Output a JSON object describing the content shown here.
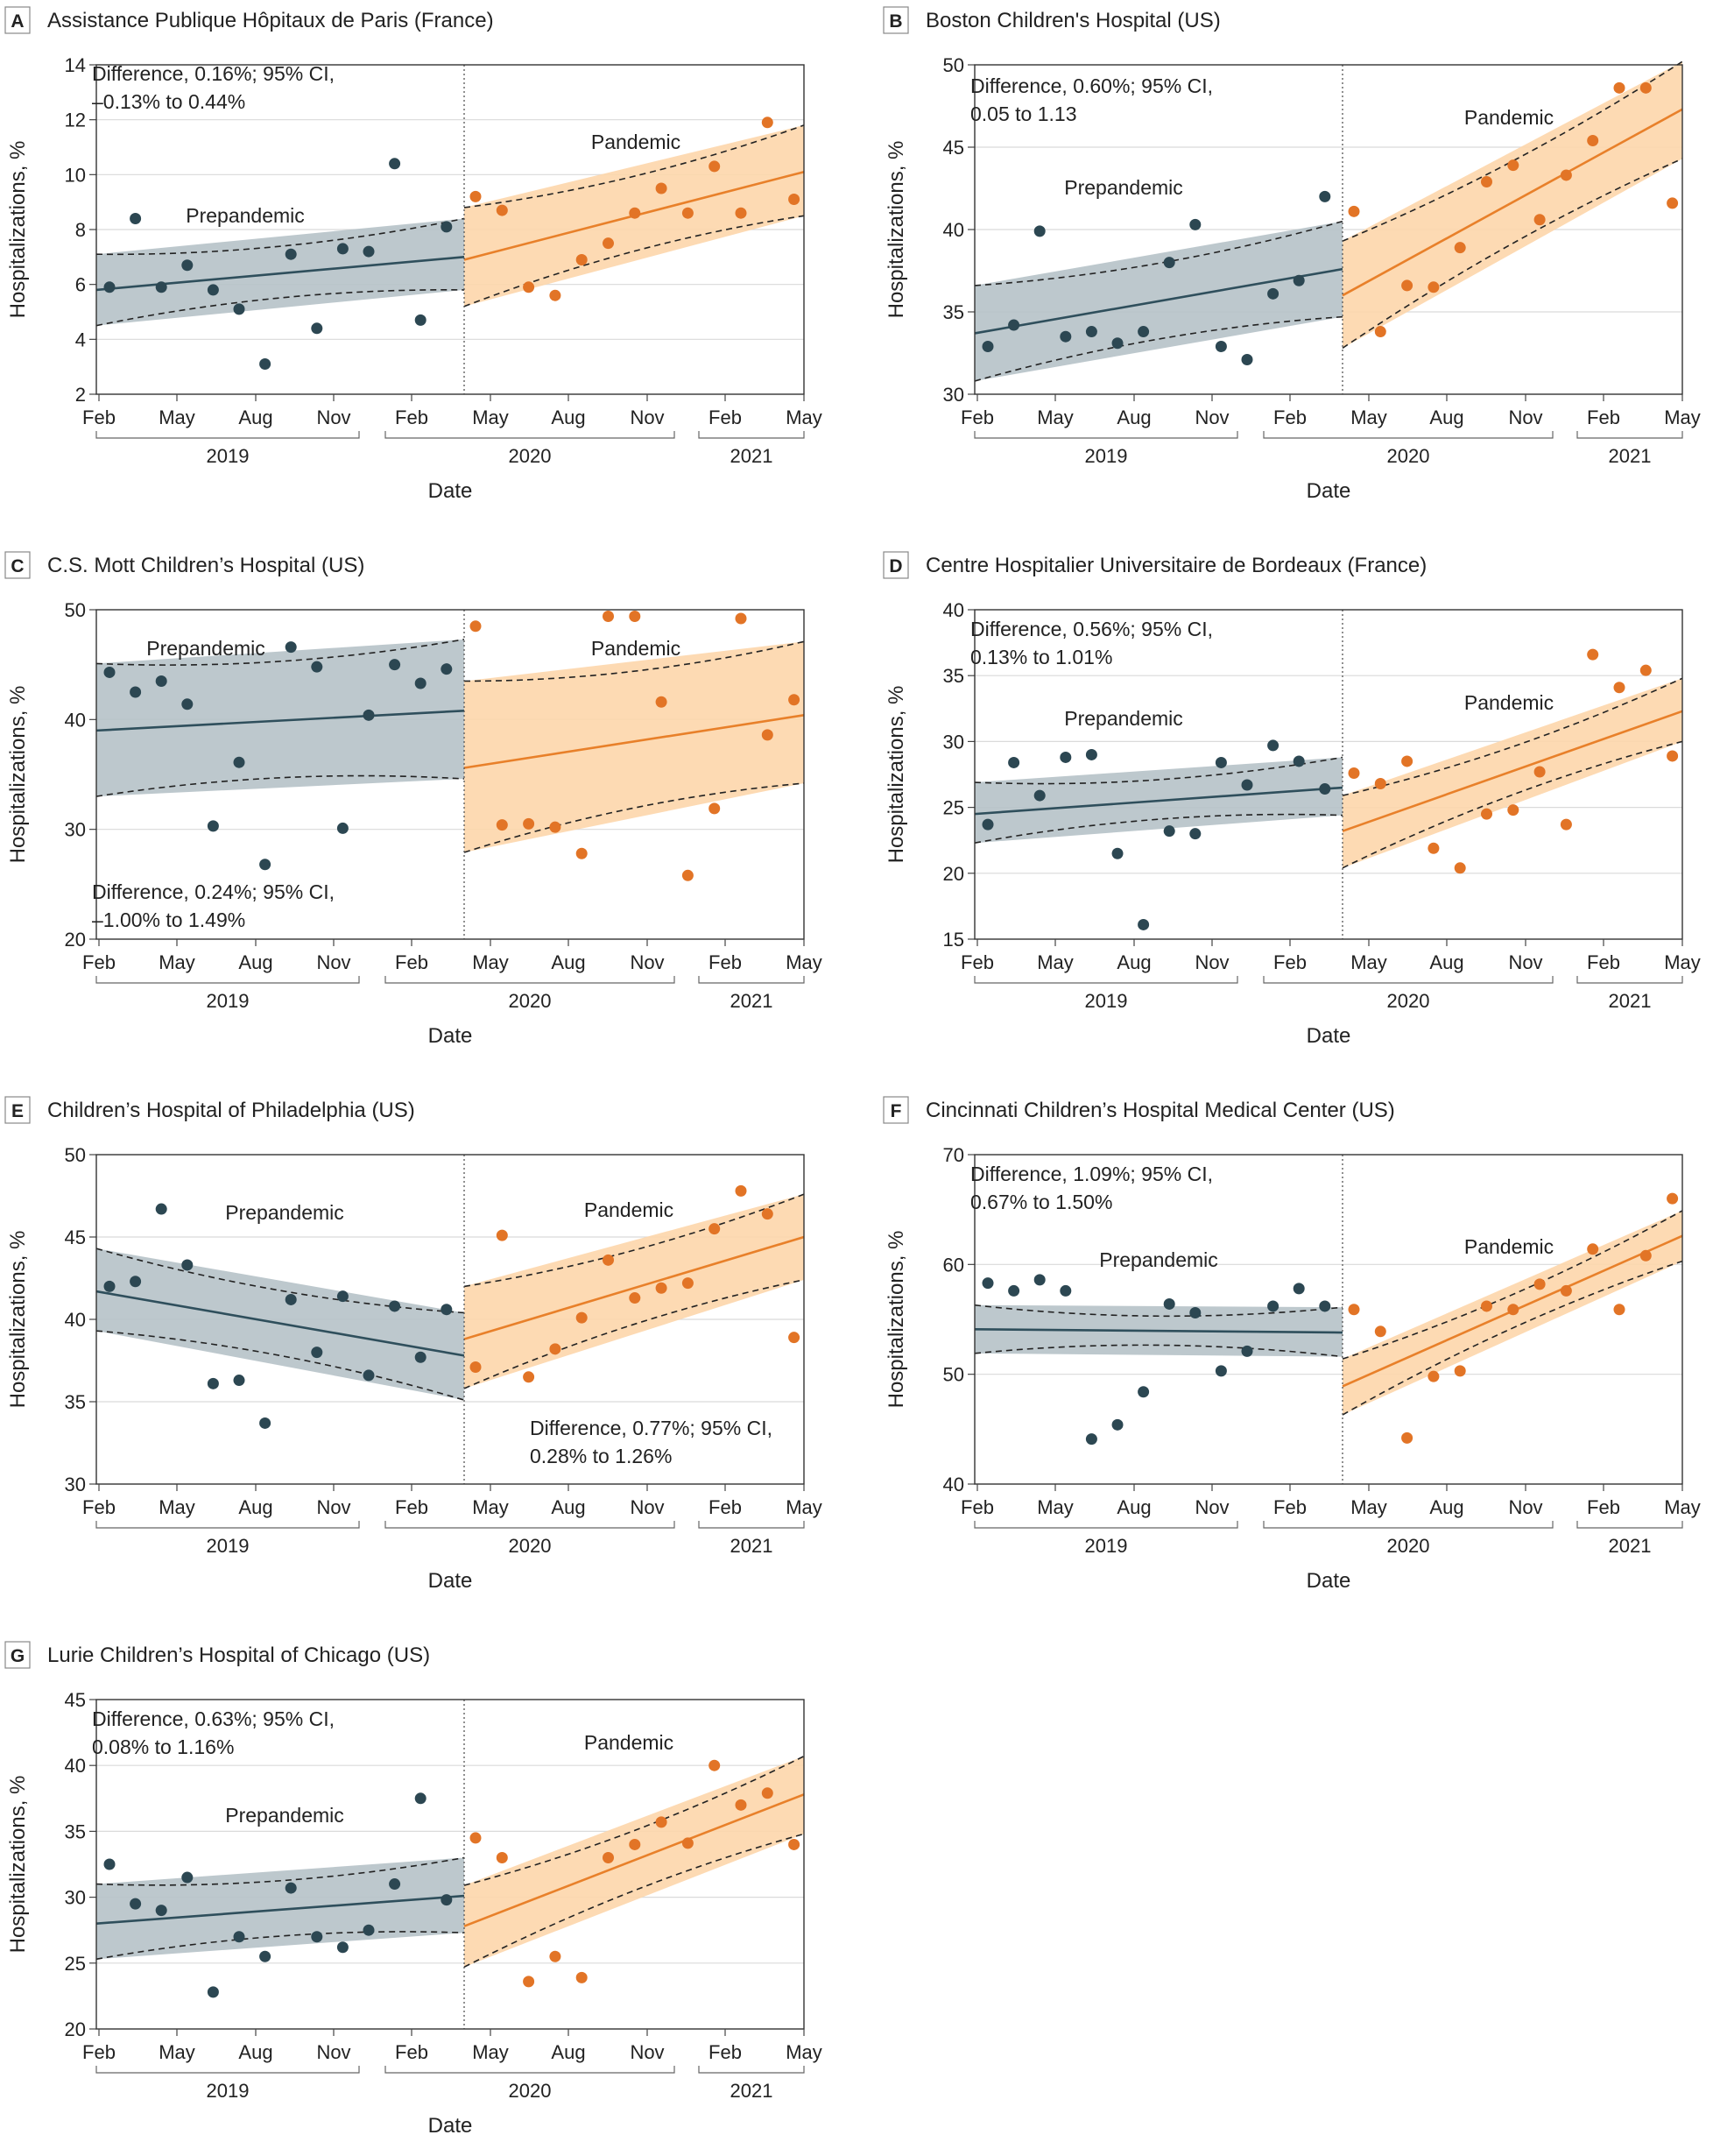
{
  "chart_data": [
    {
      "type": "scatter",
      "panel": "A",
      "title": "Assistance Publique Hôpitaux de Paris (France)",
      "xlabel": "Date",
      "ylabel": "Hospitalizations, %",
      "ylim": [
        2,
        14
      ],
      "yticks": [
        2,
        4,
        6,
        8,
        10,
        12,
        14
      ],
      "xticks": [
        "Feb",
        "May",
        "Aug",
        "Nov",
        "Feb",
        "May",
        "Aug",
        "Nov",
        "Feb",
        "May"
      ],
      "years": [
        "2019",
        "2020",
        "2021"
      ],
      "annotation": [
        "Difference, 0.16%; 95% CI,",
        "–0.13% to 0.44%"
      ],
      "periods": {
        "pre": "Prepandemic",
        "pan": "Pandemic"
      },
      "pre_points": [
        5.9,
        8.4,
        5.9,
        6.7,
        5.8,
        5.1,
        3.1,
        7.1,
        4.4,
        7.3,
        7.2,
        10.4,
        4.7,
        8.1
      ],
      "pan_points": [
        9.2,
        8.7,
        5.9,
        5.6,
        6.9,
        7.5,
        8.6,
        9.5,
        8.6,
        10.3,
        8.6,
        11.9,
        9.1
      ],
      "pre_fit": [
        5.8,
        7.0
      ],
      "pre_ci_lo": [
        4.5,
        5.8
      ],
      "pre_ci_hi": [
        7.1,
        8.4
      ],
      "pan_fit": [
        6.9,
        10.1
      ],
      "pan_ci_lo": [
        5.2,
        8.5
      ],
      "pan_ci_hi": [
        8.8,
        11.8
      ]
    },
    {
      "type": "scatter",
      "panel": "B",
      "title": "Boston Children's Hospital (US)",
      "xlabel": "Date",
      "ylabel": "Hospitalizations, %",
      "ylim": [
        30,
        50
      ],
      "yticks": [
        30,
        35,
        40,
        45,
        50
      ],
      "xticks": [
        "Feb",
        "May",
        "Aug",
        "Nov",
        "Feb",
        "May",
        "Aug",
        "Nov",
        "Feb",
        "May"
      ],
      "years": [
        "2019",
        "2020",
        "2021"
      ],
      "annotation": [
        "Difference, 0.60%; 95% CI,",
        "0.05 to 1.13"
      ],
      "periods": {
        "pre": "Prepandemic",
        "pan": "Pandemic"
      },
      "pre_points": [
        32.9,
        34.2,
        39.9,
        33.5,
        33.8,
        33.1,
        33.8,
        38.0,
        40.3,
        32.9,
        32.1,
        36.1,
        36.9,
        42.0
      ],
      "pan_points": [
        41.1,
        33.8,
        36.6,
        36.5,
        38.9,
        42.9,
        43.9,
        40.6,
        43.3,
        45.4,
        48.6,
        48.6,
        41.6
      ],
      "pre_fit": [
        33.7,
        37.6
      ],
      "pre_ci_lo": [
        30.8,
        34.7
      ],
      "pre_ci_hi": [
        36.6,
        40.5
      ],
      "pan_fit": [
        36.0,
        47.3
      ],
      "pan_ci_lo": [
        32.8,
        44.3
      ],
      "pan_ci_hi": [
        39.3,
        50.2
      ]
    },
    {
      "type": "scatter",
      "panel": "C",
      "title": "C.S. Mott Children’s Hospital (US)",
      "xlabel": "Date",
      "ylabel": "Hospitalizations, %",
      "ylim": [
        20,
        50
      ],
      "yticks": [
        20,
        30,
        40,
        50
      ],
      "xticks": [
        "Feb",
        "May",
        "Aug",
        "Nov",
        "Feb",
        "May",
        "Aug",
        "Nov",
        "Feb",
        "May"
      ],
      "years": [
        "2019",
        "2020",
        "2021"
      ],
      "annotation": [
        "Difference, 0.24%; 95% CI,",
        "–1.00% to 1.49%"
      ],
      "periods": {
        "pre": "Prepandemic",
        "pan": "Pandemic"
      },
      "pre_points": [
        44.3,
        42.5,
        43.5,
        41.4,
        30.3,
        36.1,
        26.8,
        46.6,
        44.8,
        30.1,
        40.4,
        45.0,
        43.3,
        44.6
      ],
      "pan_points": [
        48.5,
        30.4,
        30.5,
        30.2,
        27.8,
        49.4,
        49.4,
        41.6,
        25.8,
        31.9,
        49.2,
        38.6,
        41.8
      ],
      "pre_fit": [
        39.0,
        40.8
      ],
      "pre_ci_lo": [
        33.0,
        34.6
      ],
      "pre_ci_hi": [
        45.1,
        47.3
      ],
      "pan_fit": [
        35.6,
        40.4
      ],
      "pan_ci_lo": [
        27.9,
        34.2
      ],
      "pan_ci_hi": [
        43.5,
        47.1
      ]
    },
    {
      "type": "scatter",
      "panel": "D",
      "title": "Centre Hospitalier Universitaire de Bordeaux (France)",
      "xlabel": "Date",
      "ylabel": "Hospitalizations, %",
      "ylim": [
        15,
        40
      ],
      "yticks": [
        15,
        20,
        25,
        30,
        35,
        40
      ],
      "xticks": [
        "Feb",
        "May",
        "Aug",
        "Nov",
        "Feb",
        "May",
        "Aug",
        "Nov",
        "Feb",
        "May"
      ],
      "years": [
        "2019",
        "2020",
        "2021"
      ],
      "annotation": [
        "Difference, 0.56%; 95% CI,",
        "0.13% to 1.01%"
      ],
      "periods": {
        "pre": "Prepandemic",
        "pan": "Pandemic"
      },
      "pre_points": [
        23.7,
        28.4,
        25.9,
        28.8,
        29.0,
        21.5,
        16.1,
        23.2,
        23.0,
        28.4,
        26.7,
        29.7,
        28.5,
        26.4
      ],
      "pan_points": [
        27.6,
        26.8,
        28.5,
        21.9,
        20.4,
        24.5,
        24.8,
        27.7,
        23.7,
        36.6,
        34.1,
        35.4,
        28.9
      ],
      "pre_fit": [
        24.5,
        26.5
      ],
      "pre_ci_lo": [
        22.3,
        24.4
      ],
      "pre_ci_hi": [
        26.9,
        28.8
      ],
      "pan_fit": [
        23.2,
        32.3
      ],
      "pan_ci_lo": [
        20.4,
        30.0
      ],
      "pan_ci_hi": [
        25.9,
        34.8
      ]
    },
    {
      "type": "scatter",
      "panel": "E",
      "title": "Children’s Hospital of Philadelphia (US)",
      "xlabel": "Date",
      "ylabel": "Hospitalizations, %",
      "ylim": [
        30,
        50
      ],
      "yticks": [
        30,
        35,
        40,
        45,
        50
      ],
      "xticks": [
        "Feb",
        "May",
        "Aug",
        "Nov",
        "Feb",
        "May",
        "Aug",
        "Nov",
        "Feb",
        "May"
      ],
      "years": [
        "2019",
        "2020",
        "2021"
      ],
      "annotation": [
        "Difference, 0.77%; 95% CI,",
        "0.28% to 1.26%"
      ],
      "periods": {
        "pre": "Prepandemic",
        "pan": "Pandemic"
      },
      "pre_points": [
        42.0,
        42.3,
        46.7,
        43.3,
        36.1,
        36.3,
        33.7,
        41.2,
        38.0,
        41.4,
        36.6,
        40.8,
        37.7,
        40.6
      ],
      "pan_points": [
        37.1,
        45.1,
        36.5,
        38.2,
        40.1,
        43.6,
        41.3,
        41.9,
        42.2,
        45.5,
        47.8,
        46.4,
        38.9
      ],
      "pre_fit": [
        41.7,
        37.8
      ],
      "pre_ci_lo": [
        39.3,
        35.1
      ],
      "pre_ci_hi": [
        44.3,
        40.4
      ],
      "pan_fit": [
        38.8,
        45.0
      ],
      "pan_ci_lo": [
        35.8,
        42.4
      ],
      "pan_ci_hi": [
        42.0,
        47.6
      ]
    },
    {
      "type": "scatter",
      "panel": "F",
      "title": "Cincinnati Children’s Hospital Medical Center (US)",
      "xlabel": "Date",
      "ylabel": "Hospitalizations, %",
      "ylim": [
        40,
        70
      ],
      "yticks": [
        40,
        50,
        60,
        70
      ],
      "xticks": [
        "Feb",
        "May",
        "Aug",
        "Nov",
        "Feb",
        "May",
        "Aug",
        "Nov",
        "Feb",
        "May"
      ],
      "years": [
        "2019",
        "2020",
        "2021"
      ],
      "annotation": [
        "Difference, 1.09%; 95% CI,",
        "0.67% to 1.50%"
      ],
      "periods": {
        "pre": "Prepandemic",
        "pan": "Pandemic"
      },
      "pre_points": [
        58.3,
        57.6,
        58.6,
        57.6,
        44.1,
        45.4,
        48.4,
        56.4,
        55.6,
        50.3,
        52.1,
        56.2,
        57.8,
        56.2
      ],
      "pan_points": [
        55.9,
        53.9,
        44.2,
        49.8,
        50.3,
        56.2,
        55.9,
        58.2,
        57.6,
        61.4,
        55.9,
        60.8,
        66.0
      ],
      "pre_fit": [
        54.1,
        53.8
      ],
      "pre_ci_lo": [
        51.9,
        51.6
      ],
      "pre_ci_hi": [
        56.3,
        56.1
      ],
      "pan_fit": [
        48.9,
        62.6
      ],
      "pan_ci_lo": [
        46.3,
        60.3
      ],
      "pan_ci_hi": [
        51.4,
        64.9
      ]
    },
    {
      "type": "scatter",
      "panel": "G",
      "title": "Lurie Children’s Hospital of Chicago (US)",
      "xlabel": "Date",
      "ylabel": "Hospitalizations, %",
      "ylim": [
        20,
        45
      ],
      "yticks": [
        20,
        25,
        30,
        35,
        40,
        45
      ],
      "xticks": [
        "Feb",
        "May",
        "Aug",
        "Nov",
        "Feb",
        "May",
        "Aug",
        "Nov",
        "Feb",
        "May"
      ],
      "years": [
        "2019",
        "2020",
        "2021"
      ],
      "annotation": [
        "Difference, 0.63%; 95% CI,",
        "0.08% to 1.16%"
      ],
      "periods": {
        "pre": "Prepandemic",
        "pan": "Pandemic"
      },
      "pre_points": [
        32.5,
        29.5,
        29.0,
        31.5,
        22.8,
        27.0,
        25.5,
        30.7,
        27.0,
        26.2,
        27.5,
        31.0,
        37.5,
        29.8
      ],
      "pan_points": [
        34.5,
        33.0,
        23.6,
        25.5,
        23.9,
        33.0,
        34.0,
        35.7,
        34.1,
        40.0,
        37.0,
        37.9,
        34.0
      ],
      "pre_fit": [
        28.0,
        30.1
      ],
      "pre_ci_lo": [
        25.3,
        27.3
      ],
      "pre_ci_hi": [
        31.0,
        33.0
      ],
      "pan_fit": [
        27.8,
        37.8
      ],
      "pan_ci_lo": [
        24.7,
        34.8
      ],
      "pan_ci_hi": [
        30.9,
        40.7
      ]
    }
  ]
}
